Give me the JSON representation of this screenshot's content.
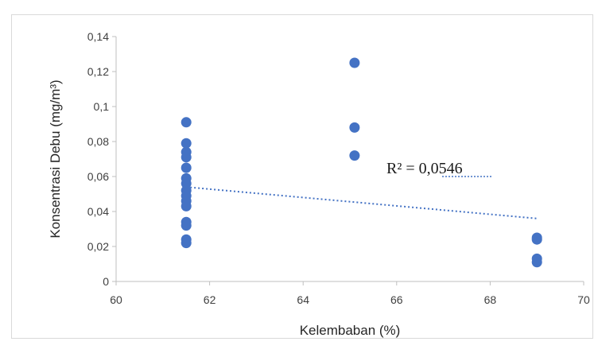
{
  "chart_data": {
    "type": "scatter",
    "xlabel": "Kelembaban (%)",
    "ylabel": "Konsentrasi Debu (mg/m³)",
    "xlim": [
      60,
      70
    ],
    "ylim": [
      0,
      0.14
    ],
    "x_ticks": [
      "60",
      "62",
      "64",
      "66",
      "68",
      "70"
    ],
    "y_ticks": [
      "0",
      "0,02",
      "0,04",
      "0,06",
      "0,08",
      "0,1",
      "0,12",
      "0,14"
    ],
    "grid": false,
    "points": [
      {
        "x": 61.5,
        "y": 0.091
      },
      {
        "x": 61.5,
        "y": 0.079
      },
      {
        "x": 61.5,
        "y": 0.074
      },
      {
        "x": 61.5,
        "y": 0.071
      },
      {
        "x": 61.5,
        "y": 0.065
      },
      {
        "x": 61.5,
        "y": 0.059
      },
      {
        "x": 61.5,
        "y": 0.056
      },
      {
        "x": 61.5,
        "y": 0.052
      },
      {
        "x": 61.5,
        "y": 0.049
      },
      {
        "x": 61.5,
        "y": 0.046
      },
      {
        "x": 61.5,
        "y": 0.043
      },
      {
        "x": 61.5,
        "y": 0.034
      },
      {
        "x": 61.5,
        "y": 0.032
      },
      {
        "x": 61.5,
        "y": 0.024
      },
      {
        "x": 61.5,
        "y": 0.022
      },
      {
        "x": 65.1,
        "y": 0.125
      },
      {
        "x": 65.1,
        "y": 0.088
      },
      {
        "x": 65.1,
        "y": 0.072
      },
      {
        "x": 69.0,
        "y": 0.025
      },
      {
        "x": 69.0,
        "y": 0.024
      },
      {
        "x": 69.0,
        "y": 0.013
      },
      {
        "x": 69.0,
        "y": 0.011
      }
    ],
    "trendline": {
      "x": [
        61.5,
        69.0
      ],
      "y": [
        0.054,
        0.036
      ],
      "style": "dotted"
    },
    "annotation": "R² = 0,0546",
    "colors": {
      "points": "#4472c4",
      "trendline": "#4472c4",
      "axis": "#bfbfbf"
    }
  }
}
